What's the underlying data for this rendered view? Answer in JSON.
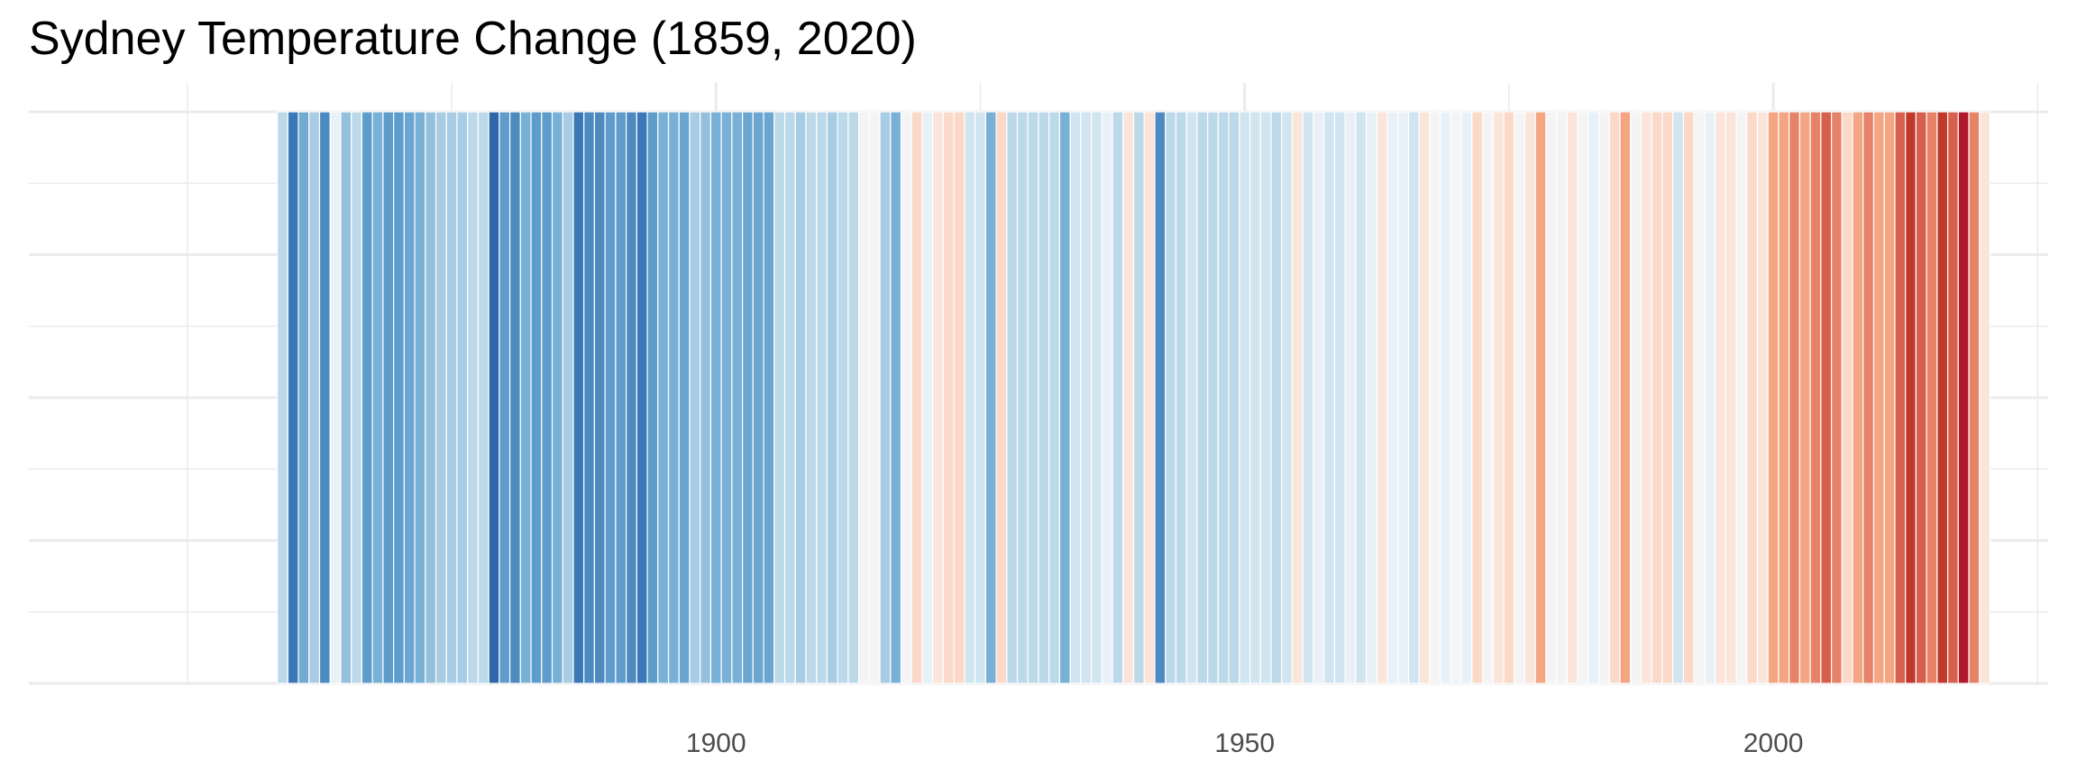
{
  "chart_data": {
    "type": "heatmap",
    "title": "Sydney Temperature Change (1859, 2020)",
    "x_range": [
      1859,
      2020
    ],
    "x_ticks": [
      "1900",
      "1950",
      "2000"
    ],
    "x_tick_values": [
      1900,
      1950,
      2000
    ],
    "xlim": [
      1835,
      2026
    ],
    "grid": true,
    "colors": {
      "background": "#ffffff",
      "grid": "#ebebeb",
      "tick_label": "#4d4d4d",
      "stripe_border": "#ffffff"
    },
    "year_colors": {
      "1859": "#bcd9ea",
      "1860": "#3b78b7",
      "1861": "#74a9cf",
      "1862": "#a7cce4",
      "1863": "#4c8ac0",
      "1864": "#e8f1f7",
      "1865": "#93c0dd",
      "1866": "#bcd9ea",
      "1867": "#5e9ccb",
      "1868": "#79b0d6",
      "1869": "#5e9ccb",
      "1870": "#5e9ccb",
      "1871": "#6ba6d1",
      "1872": "#79b0d6",
      "1873": "#93c0dd",
      "1874": "#a7cce4",
      "1875": "#a7cce4",
      "1876": "#a7cce4",
      "1877": "#bcd9ea",
      "1878": "#bcd9ea",
      "1879": "#2f68a8",
      "1880": "#5e9ccb",
      "1881": "#4c8ac0",
      "1882": "#79b0d6",
      "1883": "#5e9ccb",
      "1884": "#5e9ccb",
      "1885": "#79b0d6",
      "1886": "#a7cce4",
      "1887": "#3b78b7",
      "1888": "#4c8ac0",
      "1889": "#4c8ac0",
      "1890": "#5e9ccb",
      "1891": "#5e9ccb",
      "1892": "#4c8ac0",
      "1893": "#3b78b7",
      "1894": "#5e9ccb",
      "1895": "#79b0d6",
      "1896": "#79b0d6",
      "1897": "#6ba6d1",
      "1898": "#a7cce4",
      "1899": "#93c0dd",
      "1900": "#79b0d6",
      "1901": "#79b0d6",
      "1902": "#79b0d6",
      "1903": "#6ba6d1",
      "1904": "#6ba6d1",
      "1905": "#6ba6d1",
      "1906": "#bcd9ea",
      "1907": "#bcd9ea",
      "1908": "#a7cce4",
      "1909": "#bcd9ea",
      "1910": "#bcd9ea",
      "1911": "#a7cce4",
      "1912": "#bcd9ea",
      "1913": "#bcd9ea",
      "1914": "#f4f4f4",
      "1915": "#f4f4f4",
      "1916": "#a7cce4",
      "1917": "#79b0d6",
      "1918": "#f4f4f4",
      "1919": "#fbd9c8",
      "1920": "#e8f1f7",
      "1921": "#fbe5da",
      "1922": "#fbd9c8",
      "1923": "#fbd9c8",
      "1924": "#d1e5f0",
      "1925": "#d1e5f0",
      "1926": "#79b0d6",
      "1927": "#fbd9c8",
      "1928": "#bcd9ea",
      "1929": "#bcd9ea",
      "1930": "#bcd9ea",
      "1931": "#bcd9ea",
      "1932": "#bcd9ea",
      "1933": "#79b0d6",
      "1934": "#d1e5f0",
      "1935": "#d1e5f0",
      "1936": "#d1e5f0",
      "1937": "#e8f1f7",
      "1938": "#bcd9ea",
      "1939": "#fbe5da",
      "1940": "#bcd9ea",
      "1941": "#fbe5da",
      "1942": "#4c8ac0",
      "1943": "#bcd9ea",
      "1944": "#bcd9ea",
      "1945": "#d1e5f0",
      "1946": "#bcd9ea",
      "1947": "#bcd9ea",
      "1948": "#bcd9ea",
      "1949": "#bcd9ea",
      "1950": "#d1e5f0",
      "1951": "#d1e5f0",
      "1952": "#d1e5f0",
      "1953": "#bcd9ea",
      "1954": "#d1e5f0",
      "1955": "#fbe5da",
      "1956": "#d1e5f0",
      "1957": "#e8f1f7",
      "1958": "#d1e5f0",
      "1959": "#d1e5f0",
      "1960": "#e8f1f7",
      "1961": "#d1e5f0",
      "1962": "#e8f1f7",
      "1963": "#fbe5da",
      "1964": "#e8f1f7",
      "1965": "#e8f1f7",
      "1966": "#d1e5f0",
      "1967": "#fbe5da",
      "1968": "#f4f4f4",
      "1969": "#e8f1f7",
      "1970": "#f4f4f4",
      "1971": "#e8f1f7",
      "1972": "#fbd9c8",
      "1973": "#f4f4f4",
      "1974": "#fbe5da",
      "1975": "#fbd9c8",
      "1976": "#f4f4f4",
      "1977": "#fbe5da",
      "1978": "#f4a582",
      "1979": "#f4f4f4",
      "1980": "#f4f4f4",
      "1981": "#fbe5da",
      "1982": "#f4f4f4",
      "1983": "#e8f1f7",
      "1984": "#f4f4f4",
      "1985": "#fbd9c8",
      "1986": "#f4a582",
      "1987": "#f4f4f4",
      "1988": "#fbe5da",
      "1989": "#fbd9c8",
      "1990": "#fbd9c8",
      "1991": "#d1e5f0",
      "1992": "#fbd9c8",
      "1993": "#f4f4f4",
      "1994": "#e8f1f7",
      "1995": "#fbe5da",
      "1996": "#fbe5da",
      "1997": "#f4f4f4",
      "1998": "#fbd9c8",
      "1999": "#fbe5da",
      "2000": "#f4a582",
      "2001": "#f4a582",
      "2002": "#e58267",
      "2003": "#f4a582",
      "2004": "#e58267",
      "2005": "#d6604d",
      "2006": "#e58267",
      "2007": "#fbd9c8",
      "2008": "#f4a582",
      "2009": "#e58267",
      "2010": "#f4a582",
      "2011": "#f4a582",
      "2012": "#d6604d",
      "2013": "#c0392b",
      "2014": "#d6604d",
      "2015": "#e58267",
      "2016": "#c0392b",
      "2017": "#d6604d",
      "2018": "#b2182b",
      "2019": "#e58267",
      "2020": "#fbe5da"
    }
  }
}
